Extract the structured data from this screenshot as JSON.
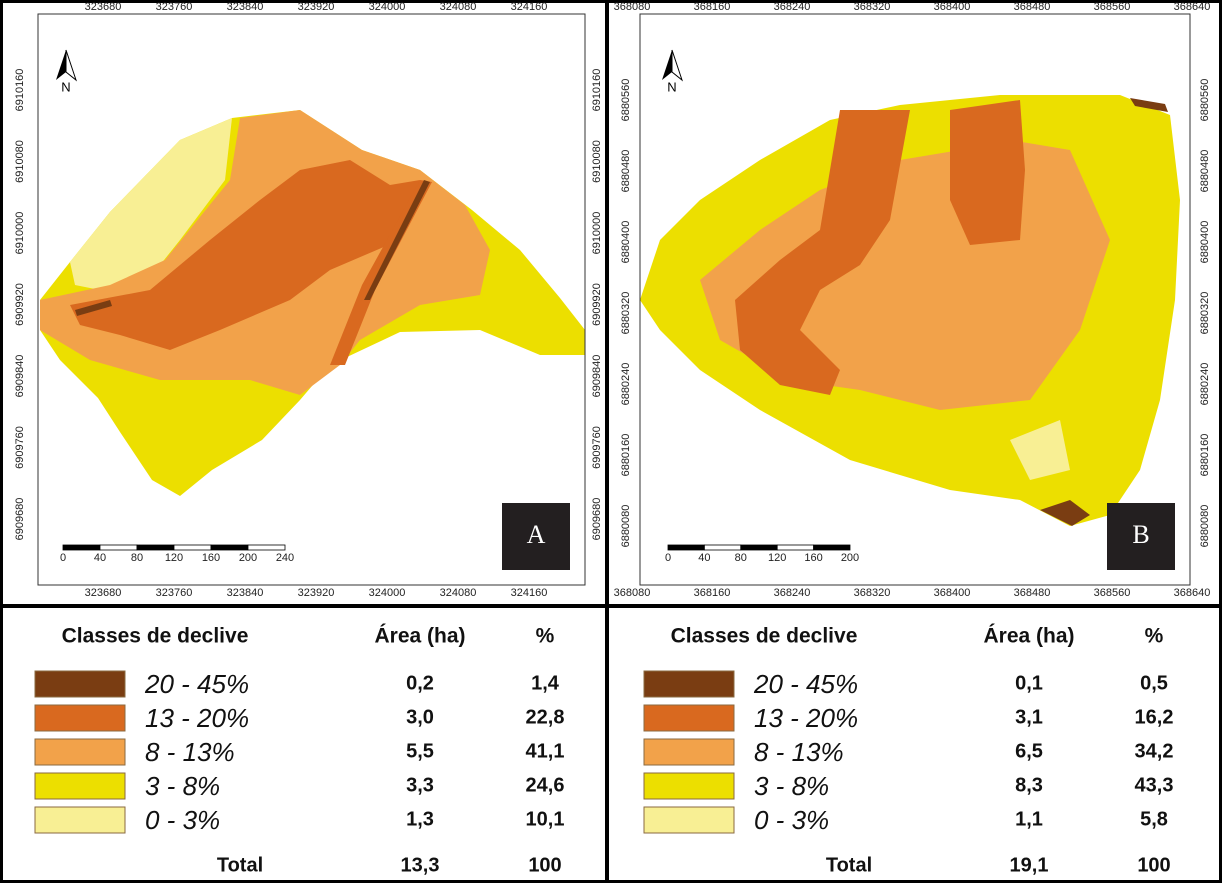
{
  "panels": [
    {
      "label": "A",
      "north": "N",
      "x_ticks_top": [
        323680,
        323760,
        323840,
        323920,
        324000,
        324080,
        324160
      ],
      "x_ticks_bottom": [
        323680,
        323760,
        323840,
        323920,
        324000,
        324080,
        324160
      ],
      "y_ticks_left": [
        6910160,
        6910080,
        6910000,
        6909920,
        6909840,
        6909760,
        6909680
      ],
      "y_ticks_right": [
        6910160,
        6910080,
        6910000,
        6909920,
        6909840,
        6909760,
        6909680
      ],
      "scale_bar": [
        0,
        40,
        80,
        120,
        160,
        200,
        240
      ],
      "table": {
        "header": [
          "Classes de declive",
          "Área (ha)",
          "%"
        ],
        "rows": [
          {
            "class": "20 - 45%",
            "color": "#7a3d12",
            "area": "0,2",
            "percent": "1,4"
          },
          {
            "class": "13 - 20%",
            "color": "#d9691f",
            "area": "3,0",
            "percent": "22,8"
          },
          {
            "class": "8 - 13%",
            "color": "#f2a24a",
            "area": "5,5",
            "percent": "41,1"
          },
          {
            "class": "3 - 8%",
            "color": "#ecdf00",
            "area": "3,3",
            "percent": "24,6"
          },
          {
            "class": "0 - 3%",
            "color": "#f8ef94",
            "area": "1,3",
            "percent": "10,1"
          }
        ],
        "total": {
          "label": "Total",
          "area": "13,3",
          "percent": "100"
        }
      }
    },
    {
      "label": "B",
      "north": "N",
      "x_ticks_top": [
        368080,
        368160,
        368240,
        368320,
        368400,
        368480,
        368560,
        368640
      ],
      "x_ticks_bottom": [
        368080,
        368160,
        368240,
        368320,
        368400,
        368480,
        368560,
        368640
      ],
      "y_ticks_left": [
        6880560,
        6880480,
        6880400,
        6880320,
        6880240,
        6880160,
        6880080
      ],
      "y_ticks_right": [
        6880560,
        6880480,
        6880400,
        6880320,
        6880240,
        6880160,
        6880080
      ],
      "scale_bar": [
        0,
        40,
        80,
        120,
        160,
        200
      ],
      "table": {
        "header": [
          "Classes de declive",
          "Área (ha)",
          "%"
        ],
        "rows": [
          {
            "class": "20 - 45%",
            "color": "#7a3d12",
            "area": "0,1",
            "percent": "0,5"
          },
          {
            "class": "13 - 20%",
            "color": "#d9691f",
            "area": "3,1",
            "percent": "16,2"
          },
          {
            "class": "8 - 13%",
            "color": "#f2a24a",
            "area": "6,5",
            "percent": "34,2"
          },
          {
            "class": "3 - 8%",
            "color": "#ecdf00",
            "area": "8,3",
            "percent": "43,3"
          },
          {
            "class": "0 - 3%",
            "color": "#f8ef94",
            "area": "1,1",
            "percent": "5,8"
          }
        ],
        "total": {
          "label": "Total",
          "area": "19,1",
          "percent": "100"
        }
      }
    }
  ]
}
